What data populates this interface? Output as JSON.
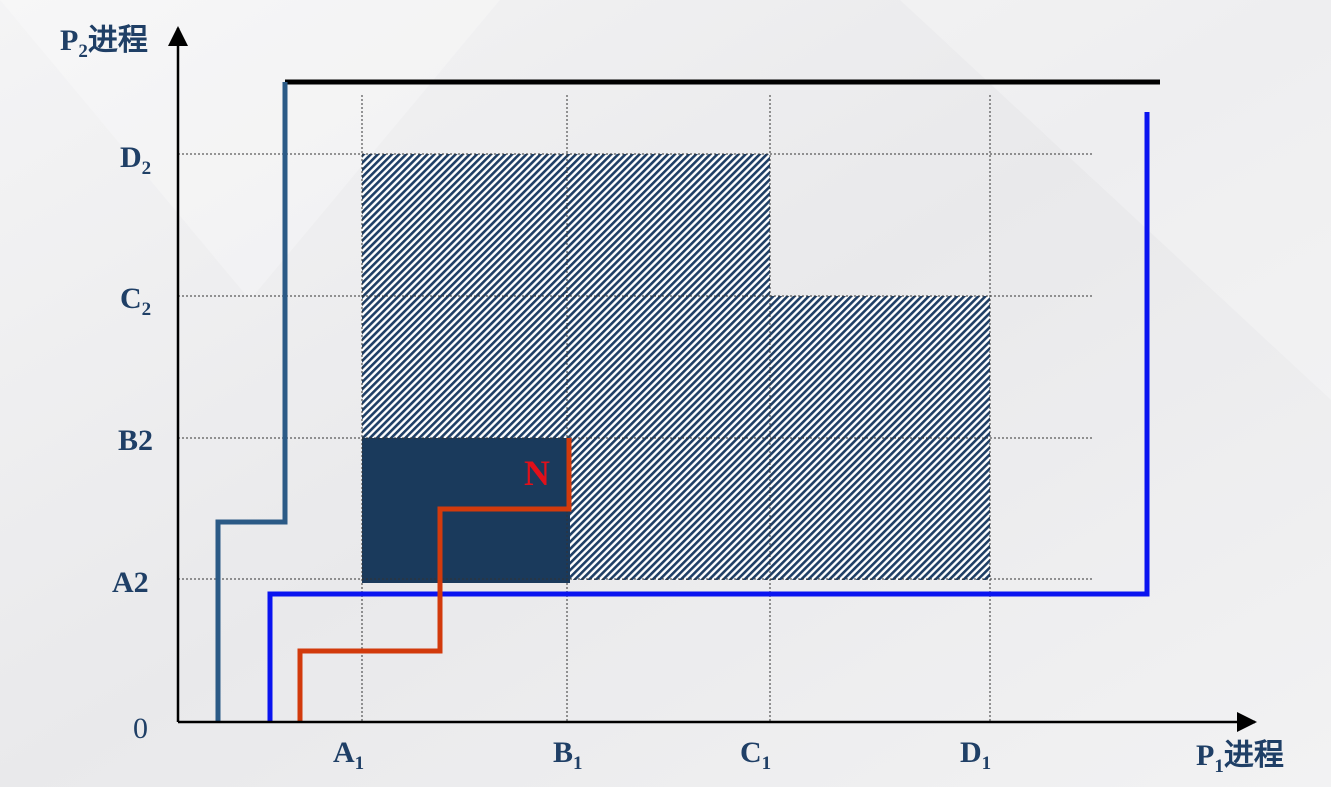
{
  "y_axis": {
    "label": {
      "text": "P",
      "sub": "2",
      "suffix": "进程"
    },
    "ticks": [
      {
        "text": "D",
        "sub": "2"
      },
      {
        "text": "C",
        "sub": "2"
      },
      {
        "text": "B2"
      },
      {
        "text": "A2"
      }
    ]
  },
  "origin": "0",
  "x_axis": {
    "label": {
      "text": "P",
      "sub": "1",
      "suffix": "进程"
    },
    "ticks": [
      {
        "text": "A",
        "sub": "1"
      },
      {
        "text": "B",
        "sub": "1"
      },
      {
        "text": "C",
        "sub": "1"
      },
      {
        "text": "D",
        "sub": "1"
      }
    ]
  },
  "region_label": "N"
}
